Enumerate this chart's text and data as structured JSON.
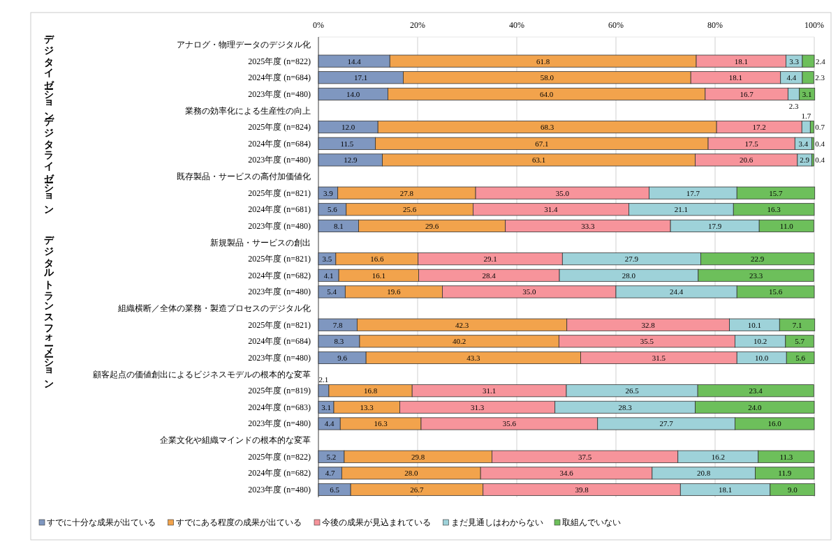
{
  "chart_data": {
    "type": "bar",
    "orientation": "horizontal",
    "stacked": true,
    "grid": "x",
    "legend": "bottom",
    "xlim": [
      0,
      100
    ],
    "xticks": [
      {
        "value": 0,
        "label": "0%"
      },
      {
        "value": 20,
        "label": "20%"
      },
      {
        "value": 40,
        "label": "40%"
      },
      {
        "value": 60,
        "label": "60%"
      },
      {
        "value": 80,
        "label": "80%"
      },
      {
        "value": 100,
        "label": "100%"
      }
    ],
    "annotations": [
      "デジタイゼーション",
      "デジタライゼーション",
      "デジタルトランスフォーメーション"
    ],
    "categories": [
      "アナログ・物理データのデジタル化",
      "2025年度 (n=822)",
      "2024年度 (n=684)",
      "2023年度 (n=480)",
      "業務の効率化による生産性の向上",
      "2025年度 (n=824)",
      "2024年度 (n=684)",
      "2023年度 (n=480)",
      "既存製品・サービスの高付加価値化",
      "2025年度 (n=821)",
      "2024年度 (n=681)",
      "2023年度 (n=480)",
      "新規製品・サービスの創出",
      "2025年度 (n=821)",
      "2024年度 (n=682)",
      "2023年度 (n=480)",
      "組織横断／全体の業務・製造プロセスのデジタル化",
      "2025年度 (n=821)",
      "2024年度 (n=684)",
      "2023年度 (n=480)",
      "顧客起点の価値創出によるビジネスモデルの根本的な変革",
      "2025年度 (n=819)",
      "2024年度 (n=683)",
      "2023年度 (n=480)",
      "企業文化や組織マインドの根本的な変革",
      "2025年度 (n=822)",
      "2024年度 (n=682)",
      "2023年度 (n=480)"
    ],
    "series": [
      {
        "name": "すでに十分な成果が出ている",
        "color": "#7f97c0",
        "values": [
          null,
          14.4,
          17.1,
          14.0,
          null,
          12.0,
          11.5,
          12.9,
          null,
          3.9,
          5.6,
          8.1,
          null,
          3.5,
          4.1,
          5.4,
          null,
          7.8,
          8.3,
          9.6,
          null,
          2.1,
          3.1,
          4.4,
          null,
          5.2,
          4.7,
          6.5
        ],
        "value_labels": [
          null,
          "14.4",
          "17.1",
          "14.0",
          null,
          "12.0",
          "11.5",
          "12.9",
          null,
          "3.9",
          "5.6",
          "8.1",
          null,
          "3.5",
          "4.1",
          "5.4",
          null,
          "7.8",
          "8.3",
          "9.6",
          null,
          "2.1",
          "3.1",
          "4.4",
          null,
          "5.2",
          "4.7",
          "6.5"
        ]
      },
      {
        "name": "すでにある程度の成果が出ている",
        "color": "#f2a34c",
        "values": [
          null,
          61.8,
          58.0,
          64.0,
          null,
          68.3,
          67.1,
          63.1,
          null,
          27.8,
          25.6,
          29.6,
          null,
          16.6,
          16.1,
          19.6,
          null,
          42.3,
          40.2,
          43.3,
          null,
          16.8,
          13.3,
          16.3,
          null,
          29.8,
          28.0,
          26.7
        ],
        "value_labels": [
          null,
          "61.8",
          "58.0",
          "64.0",
          null,
          "68.3",
          "67.1",
          "63.1",
          null,
          "27.8",
          "25.6",
          "29.6",
          null,
          "16.6",
          "16.1",
          "19.6",
          null,
          "42.3",
          "40.2",
          "43.3",
          null,
          "16.8",
          "13.3",
          "16.3",
          null,
          "29.8",
          "28.0",
          "26.7"
        ]
      },
      {
        "name": "今後の成果が見込まれている",
        "color": "#f7949b",
        "values": [
          null,
          18.1,
          18.1,
          16.7,
          null,
          17.2,
          17.5,
          20.6,
          null,
          35.0,
          31.4,
          33.3,
          null,
          29.1,
          28.4,
          35.0,
          null,
          32.8,
          35.5,
          31.5,
          null,
          31.1,
          31.3,
          35.6,
          null,
          37.5,
          34.6,
          39.8
        ],
        "value_labels": [
          null,
          "18.1",
          "18.1",
          "16.7",
          null,
          "17.2",
          "17.5",
          "20.6",
          null,
          "35.0",
          "31.4",
          "33.3",
          null,
          "29.1",
          "28.4",
          "35.0",
          null,
          "32.8",
          "35.5",
          "31.5",
          null,
          "31.1",
          "31.3",
          "35.6",
          null,
          "37.5",
          "34.6",
          "39.8"
        ]
      },
      {
        "name": "まだ見通しはわからない",
        "color": "#9ed2d9",
        "values": [
          null,
          3.3,
          4.4,
          2.3,
          null,
          1.7,
          3.4,
          2.9,
          null,
          17.7,
          21.1,
          17.9,
          null,
          27.9,
          28.0,
          24.4,
          null,
          10.1,
          10.2,
          10.0,
          null,
          26.5,
          28.3,
          27.7,
          null,
          16.2,
          20.8,
          18.1
        ],
        "value_labels": [
          null,
          "3.3",
          "4.4",
          "2.3",
          null,
          "1.7",
          "3.4",
          "2.9",
          null,
          "17.7",
          "21.1",
          "17.9",
          null,
          "27.9",
          "28.0",
          "24.4",
          null,
          "10.1",
          "10.2",
          "10.0",
          null,
          "26.5",
          "28.3",
          "27.7",
          null,
          "16.2",
          "20.8",
          "18.1"
        ]
      },
      {
        "name": "取組んでいない",
        "color": "#6dbf5b",
        "values": [
          null,
          2.4,
          2.3,
          3.1,
          null,
          0.7,
          0.4,
          0.4,
          null,
          15.7,
          16.3,
          11.0,
          null,
          22.9,
          23.3,
          15.6,
          null,
          7.1,
          5.7,
          5.6,
          null,
          23.4,
          24.0,
          16.0,
          null,
          11.3,
          11.9,
          9.0
        ],
        "value_labels": [
          null,
          "2.4",
          "2.3",
          "3.1",
          null,
          "0.7",
          "0.4",
          "0.4",
          null,
          "15.7",
          "16.3",
          "11.0",
          null,
          "22.9",
          "23.3",
          "15.6",
          null,
          "7.1",
          "5.7",
          "5.6",
          null,
          "23.4",
          "24.0",
          "16.0",
          null,
          "11.3",
          "11.9",
          "9.0"
        ]
      }
    ]
  }
}
